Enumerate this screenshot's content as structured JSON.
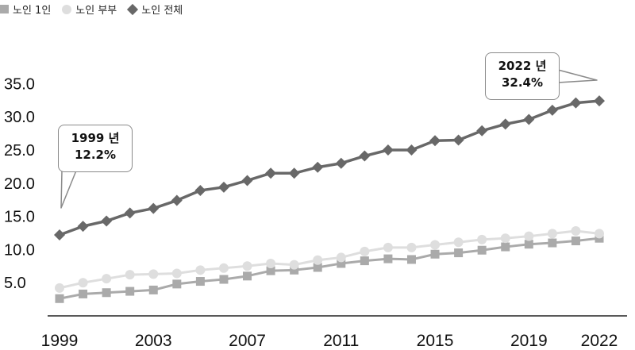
{
  "legend": [
    {
      "label": "노인 1인",
      "marker": "square"
    },
    {
      "label": "노인 부부",
      "marker": "circle"
    },
    {
      "label": "노인 전체",
      "marker": "diamond"
    }
  ],
  "callouts": {
    "start": {
      "year": "1999 년",
      "value": "12.2%"
    },
    "end": {
      "year": "2022 년",
      "value": "32.4%"
    }
  },
  "colors": {
    "single": "#aaaaaa",
    "couple": "#dedede",
    "total": "#686868",
    "axis": "#222222"
  },
  "chart_data": {
    "type": "line",
    "x": [
      1999,
      2000,
      2001,
      2002,
      2003,
      2004,
      2005,
      2006,
      2007,
      2008,
      2009,
      2010,
      2011,
      2012,
      2013,
      2014,
      2015,
      2016,
      2017,
      2018,
      2019,
      2020,
      2021,
      2022
    ],
    "x_tick_labels": [
      "1999",
      "2003",
      "2007",
      "2011",
      "2015",
      "2019",
      "2022"
    ],
    "y_tick_labels": [
      "5.0",
      "10.0",
      "15.0",
      "20.0",
      "25.0",
      "30.0",
      "35.0"
    ],
    "xlim": [
      1999,
      2022
    ],
    "ylim": [
      0,
      35
    ],
    "grid": false,
    "legend_position": "top-left",
    "series": [
      {
        "name": "노인 1인",
        "marker": "square",
        "values": [
          2.6,
          3.3,
          3.5,
          3.7,
          3.9,
          4.8,
          5.2,
          5.5,
          6.0,
          6.8,
          6.9,
          7.3,
          7.9,
          8.3,
          8.6,
          8.5,
          9.3,
          9.5,
          9.9,
          10.4,
          10.8,
          11.0,
          11.3,
          11.7
        ]
      },
      {
        "name": "노인 부부",
        "marker": "circle",
        "values": [
          4.2,
          5.0,
          5.6,
          6.2,
          6.3,
          6.4,
          6.9,
          7.2,
          7.5,
          7.9,
          7.7,
          8.4,
          8.8,
          9.7,
          10.3,
          10.3,
          10.7,
          11.1,
          11.5,
          11.7,
          12.0,
          12.4,
          12.8,
          12.4
        ]
      },
      {
        "name": "노인 전체",
        "marker": "diamond",
        "values": [
          12.2,
          13.5,
          14.3,
          15.5,
          16.2,
          17.4,
          18.9,
          19.4,
          20.4,
          21.5,
          21.5,
          22.4,
          23.0,
          24.1,
          25.0,
          25.0,
          26.4,
          26.5,
          27.9,
          28.9,
          29.6,
          31.0,
          32.1,
          32.4
        ]
      }
    ]
  }
}
